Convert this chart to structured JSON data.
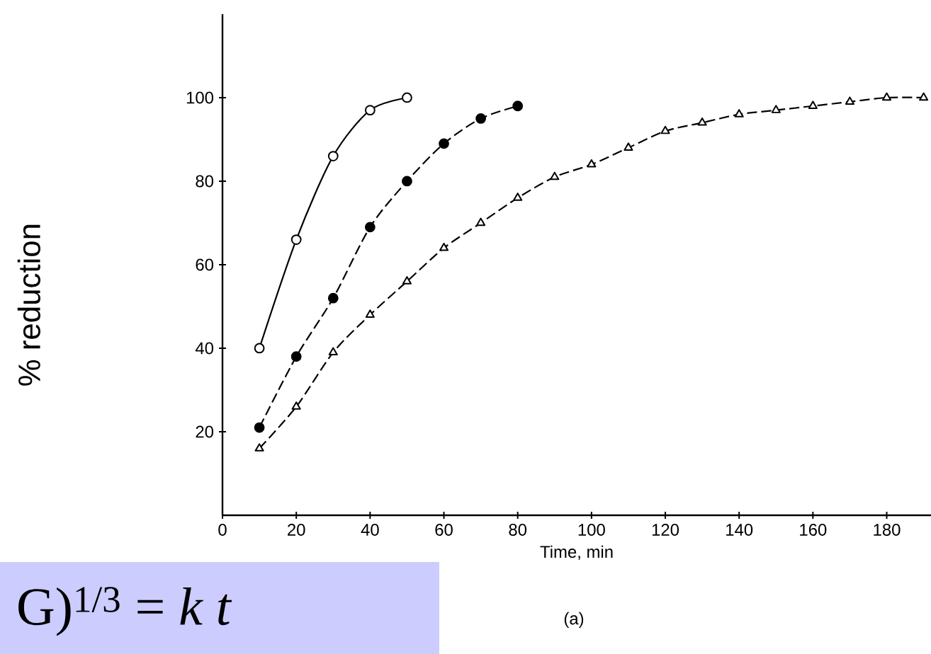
{
  "chart_data": {
    "type": "line",
    "xlabel": "Time, min",
    "ylabel": "% reduction",
    "annotations": [
      "(a)",
      "G)$^{1/3}$ = *k t*"
    ],
    "xlim": [
      0,
      192
    ],
    "ylim": [
      0,
      120
    ],
    "xticks": [
      0,
      20,
      40,
      60,
      80,
      100,
      120,
      140,
      160,
      180
    ],
    "yticks": [
      20,
      40,
      60,
      80,
      100
    ],
    "series": [
      {
        "color": "#000000",
        "marker": "circle",
        "line_style": "solid",
        "x": [
          10,
          20,
          30,
          40,
          50
        ],
        "values": [
          40,
          66,
          86,
          97,
          100
        ]
      },
      {
        "color": "#000000",
        "marker": "circle",
        "line_style": "dashed",
        "x": [
          10,
          20,
          30,
          40,
          50,
          60,
          70,
          80
        ],
        "values": [
          21,
          38,
          52,
          69,
          80,
          89,
          95,
          98
        ]
      },
      {
        "color": "#000000",
        "marker": "triangle",
        "line_style": "dashed",
        "x": [
          10,
          20,
          30,
          40,
          50,
          60,
          70,
          80,
          90,
          100,
          110,
          120,
          130,
          140,
          150,
          160,
          170,
          180,
          190
        ],
        "values": [
          16,
          26,
          39,
          48,
          56,
          64,
          70,
          76,
          81,
          84,
          88,
          92,
          94,
          96,
          97,
          98,
          99,
          100,
          100
        ]
      }
    ]
  }
}
